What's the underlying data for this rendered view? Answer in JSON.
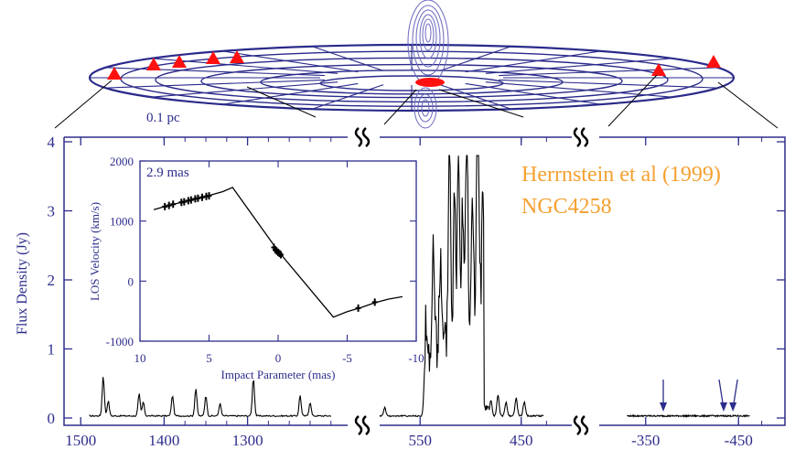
{
  "colors": {
    "axis": "#2d2d8c",
    "disk": "#2a2a8a",
    "contour": "#6a6ac0",
    "maser": "#ff1010",
    "arrow": "#2d2d8c",
    "credit": "#f5a030",
    "trace": "#000000"
  },
  "scale_bar": "0.1 pc",
  "credit": {
    "line1": "Herrnstein et al (1999)",
    "line2": "NGC4258"
  },
  "chart_data": [
    {
      "type": "line",
      "ylabel": "Flux Density (Jy)",
      "ylim": [
        0,
        4
      ],
      "yticks": [
        "0",
        "1",
        "2",
        "3",
        "4"
      ],
      "panels": [
        {
          "id": "redshifted",
          "xlim": [
            1520,
            1180
          ],
          "xticks": [
            1500,
            1400,
            1300
          ],
          "xtick_labels": [
            "1500",
            "1400",
            "1300"
          ],
          "peaks": [
            {
              "x": 1473,
              "y": 0.58
            },
            {
              "x": 1467,
              "y": 0.22
            },
            {
              "x": 1430,
              "y": 0.32
            },
            {
              "x": 1425,
              "y": 0.2
            },
            {
              "x": 1390,
              "y": 0.3
            },
            {
              "x": 1362,
              "y": 0.4
            },
            {
              "x": 1350,
              "y": 0.3
            },
            {
              "x": 1333,
              "y": 0.18
            },
            {
              "x": 1293,
              "y": 0.55
            },
            {
              "x": 1237,
              "y": 0.3
            },
            {
              "x": 1225,
              "y": 0.2
            }
          ]
        },
        {
          "id": "systemic",
          "xlim": [
            590,
            400
          ],
          "xticks": [
            550,
            450
          ],
          "xtick_labels": [
            "550",
            "450"
          ],
          "peaks": [
            {
              "x": 585,
              "y": 0.12
            },
            {
              "x": 545,
              "y": 0.8
            },
            {
              "x": 537,
              "y": 1.55
            },
            {
              "x": 530,
              "y": 1.25
            },
            {
              "x": 521,
              "y": 3.1
            },
            {
              "x": 516,
              "y": 2.05
            },
            {
              "x": 512,
              "y": 2.9
            },
            {
              "x": 508,
              "y": 2.0
            },
            {
              "x": 504,
              "y": 3.15
            },
            {
              "x": 498,
              "y": 1.9
            },
            {
              "x": 493,
              "y": 3.7
            },
            {
              "x": 488,
              "y": 1.55
            },
            {
              "x": 480,
              "y": 0.22
            },
            {
              "x": 473,
              "y": 0.3
            },
            {
              "x": 465,
              "y": 0.2
            },
            {
              "x": 455,
              "y": 0.26
            },
            {
              "x": 447,
              "y": 0.2
            }
          ]
        },
        {
          "id": "blueshifted",
          "xlim": [
            -300,
            -500
          ],
          "xticks": [
            -350,
            -450
          ],
          "xtick_labels": [
            "-350",
            "-450"
          ],
          "arrows_at": [
            -369,
            -434,
            -444
          ]
        }
      ]
    },
    {
      "type": "scatter",
      "label": "2.9 mas",
      "xlabel": "Impact Parameter (mas)",
      "ylabel": "LOS Velocity (km/s)",
      "xlim": [
        10,
        -10
      ],
      "ylim": [
        -1000,
        2000
      ],
      "xticks": [
        10,
        5,
        0,
        -5,
        -10
      ],
      "xtick_labels": [
        "10",
        "5",
        "0",
        "-5",
        "-10"
      ],
      "yticks": [
        -1000,
        0,
        1000,
        2000
      ],
      "ytick_labels": [
        "-1000",
        "0",
        "1000",
        "2000"
      ],
      "points": [
        [
          8.2,
          1240
        ],
        [
          7.9,
          1260
        ],
        [
          7.6,
          1280
        ],
        [
          7.0,
          1310
        ],
        [
          6.8,
          1320
        ],
        [
          6.5,
          1340
        ],
        [
          6.3,
          1350
        ],
        [
          6.0,
          1370
        ],
        [
          5.8,
          1380
        ],
        [
          5.5,
          1395
        ],
        [
          5.2,
          1410
        ],
        [
          5.0,
          1420
        ],
        [
          0.3,
          560
        ],
        [
          0.2,
          520
        ],
        [
          0.1,
          500
        ],
        [
          0.0,
          480
        ],
        [
          -0.1,
          460
        ],
        [
          -0.2,
          440
        ],
        [
          -5.8,
          -450
        ],
        [
          -7.0,
          -350
        ]
      ],
      "model_curve": [
        [
          9.0,
          1190
        ],
        [
          8.0,
          1255
        ],
        [
          7.0,
          1310
        ],
        [
          6.0,
          1370
        ],
        [
          5.0,
          1425
        ],
        [
          4.0,
          1490
        ],
        [
          3.3,
          1560
        ],
        [
          0,
          500
        ],
        [
          -4.0,
          -600
        ],
        [
          -5.0,
          -510
        ],
        [
          -6.0,
          -440
        ],
        [
          -7.0,
          -360
        ],
        [
          -8.0,
          -300
        ],
        [
          -9.0,
          -260
        ]
      ]
    }
  ]
}
